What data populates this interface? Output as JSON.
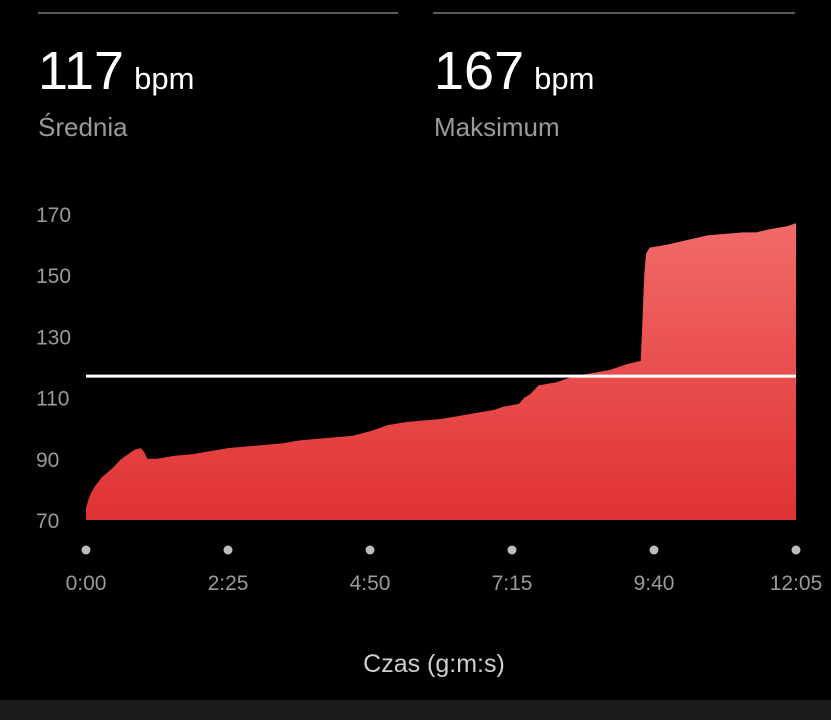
{
  "stats": {
    "average": {
      "value": "117",
      "unit": "bpm",
      "label": "Średnia"
    },
    "maximum": {
      "value": "167",
      "unit": "bpm",
      "label": "Maksimum"
    }
  },
  "colors": {
    "area_top": "#f26a6a",
    "area_bottom": "#e03232",
    "avg_line": "#ffffff",
    "axis_text": "#9a9a9a",
    "dot": "#bdbdbd"
  },
  "chart_data": {
    "type": "area",
    "title": "",
    "xlabel": "Czas (g:m:s)",
    "ylabel": "",
    "x_unit": "seconds",
    "xlim": [
      0,
      725
    ],
    "ylim": [
      70,
      170
    ],
    "y_ticks": [
      70,
      90,
      110,
      130,
      150,
      170
    ],
    "x_ticks": [
      {
        "value": 0,
        "label": "0:00"
      },
      {
        "value": 145,
        "label": "2:25"
      },
      {
        "value": 290,
        "label": "4:50"
      },
      {
        "value": 435,
        "label": "7:15"
      },
      {
        "value": 580,
        "label": "9:40"
      },
      {
        "value": 725,
        "label": "12:05"
      }
    ],
    "reference_line": {
      "value": 117,
      "label": "Średnia"
    },
    "series": [
      {
        "points": [
          [
            0,
            74
          ],
          [
            3,
            77
          ],
          [
            6,
            79
          ],
          [
            10,
            81
          ],
          [
            14,
            82.5
          ],
          [
            18,
            84
          ],
          [
            22,
            85
          ],
          [
            26,
            86
          ],
          [
            30,
            87
          ],
          [
            35,
            88.5
          ],
          [
            40,
            90
          ],
          [
            45,
            91
          ],
          [
            50,
            92
          ],
          [
            55,
            93
          ],
          [
            62,
            93.5
          ],
          [
            66,
            92
          ],
          [
            69,
            90
          ],
          [
            80,
            90
          ],
          [
            90,
            90.5
          ],
          [
            100,
            91
          ],
          [
            120,
            91.5
          ],
          [
            130,
            92
          ],
          [
            150,
            93
          ],
          [
            160,
            93.5
          ],
          [
            180,
            94
          ],
          [
            200,
            94.5
          ],
          [
            220,
            95
          ],
          [
            240,
            96
          ],
          [
            260,
            96.5
          ],
          [
            280,
            97
          ],
          [
            300,
            97.5
          ],
          [
            320,
            99
          ],
          [
            330,
            100
          ],
          [
            340,
            101
          ],
          [
            360,
            102
          ],
          [
            380,
            102.5
          ],
          [
            400,
            103
          ],
          [
            420,
            104
          ],
          [
            440,
            105
          ],
          [
            460,
            106
          ],
          [
            470,
            107
          ],
          [
            488,
            108
          ],
          [
            494,
            110
          ],
          [
            500,
            111
          ],
          [
            510,
            114
          ],
          [
            530,
            115
          ],
          [
            550,
            117
          ],
          [
            570,
            118
          ],
          [
            590,
            119
          ],
          [
            600,
            120
          ],
          [
            610,
            121
          ],
          [
            625,
            122
          ],
          [
            627,
            135
          ],
          [
            629,
            150
          ],
          [
            631,
            157
          ],
          [
            635,
            159
          ],
          [
            655,
            160
          ],
          [
            670,
            161
          ],
          [
            685,
            162
          ],
          [
            700,
            163
          ],
          [
            740,
            164
          ],
          [
            755,
            164
          ],
          [
            770,
            165
          ],
          [
            790,
            166
          ],
          [
            800,
            167
          ]
        ]
      }
    ]
  }
}
